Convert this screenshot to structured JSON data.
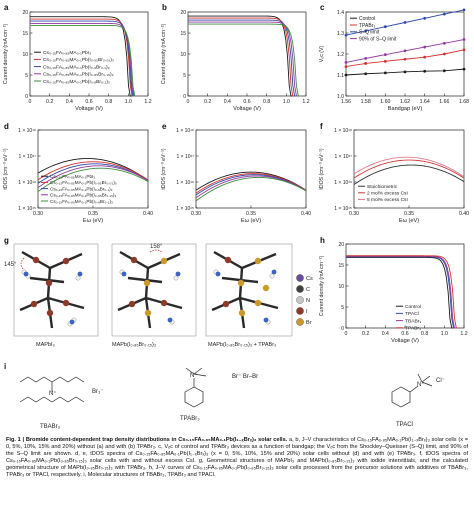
{
  "labels": {
    "a": "a",
    "b": "b",
    "c": "c",
    "d": "d",
    "e": "e",
    "f": "f",
    "g": "g",
    "h": "h",
    "i": "i"
  },
  "colors": {
    "black": "#1a1a1a",
    "red": "#d2322d",
    "blue": "#2f49a8",
    "purple": "#8e3aa0",
    "green": "#3c8d3c",
    "tdos_black": "#333333",
    "tdos_red": "#cc3b3b",
    "tdos_pink": "#e07a8c",
    "atom_Cs": "#6a4c9c",
    "atom_C": "#404040",
    "atom_N": "#c8c8c8",
    "atom_H": "#f2f2f2",
    "atom_I": "#8c3a2a",
    "atom_Br": "#c89a2a"
  },
  "panel_a": {
    "ylabel": "Current density (mA cm⁻²)",
    "xlabel": "Voltage (V)",
    "yticks": [
      "0",
      "5",
      "10",
      "15",
      "20"
    ],
    "xticks": [
      "0",
      "0.2",
      "0.4",
      "0.6",
      "0.8",
      "1.0",
      "1.2"
    ],
    "legend": [
      {
        "label": "Cs₀.₁₅FA₀.₈₅MA₀.₁PbI₃",
        "color": "#1a1a1a"
      },
      {
        "label": "Cs₀.₁₅FA₀.₈₅MA₀.₁Pb(I₀.₉₅Br₀.₀₅)₃",
        "color": "#d2322d"
      },
      {
        "label": "Cs₀.₁₅FA₀.₈₅MA₀.₁Pb(I₀.₉Br₀.₁)₃",
        "color": "#2f49a8"
      },
      {
        "label": "Cs₀.₁₅FA₀.₈₅MA₀.₁Pb(I₀.₈₅Br₀.₁₅)₃",
        "color": "#8e3aa0"
      },
      {
        "label": "Cs₀.₁₅FA₀.₈₅MA₀.₁Pb(I₀.₈Br₀.₂)₃",
        "color": "#3c8d3c"
      }
    ]
  },
  "panel_b": {
    "ylabel": "Current density (mA cm⁻²)",
    "xlabel": "Voltage (V)",
    "yticks": [
      "0",
      "5",
      "10",
      "15",
      "20"
    ],
    "xticks": [
      "0",
      "0.2",
      "0.4",
      "0.6",
      "0.8",
      "1.0",
      "1.2"
    ]
  },
  "panel_c": {
    "ylabel": "Vₒc (V)",
    "xlabel": "Bandgap (eV)",
    "yticks": [
      "1.0",
      "1.1",
      "1.2",
      "1.3",
      "1.4"
    ],
    "xticks": [
      "1.56",
      "1.58",
      "1.60",
      "1.62",
      "1.64",
      "1.66",
      "1.68"
    ],
    "legend": [
      {
        "label": "Control",
        "color": "#1a1a1a"
      },
      {
        "label": "TPABr₃",
        "color": "#d2322d"
      },
      {
        "label": "S–Q limit",
        "color": "#2f49a8"
      },
      {
        "label": "90% of S–Q limit",
        "color": "#8e3aa0"
      }
    ]
  },
  "panel_d": {
    "ylabel": "tDOS (cm⁻³ eV⁻¹)",
    "xlabel": "Eω (eV)",
    "yticks": [
      "1 × 10¹⁵",
      "1 × 10¹⁶",
      "1 × 10¹⁷",
      "1 × 10¹⁸"
    ],
    "xticks": [
      "0.30",
      "0.35",
      "0.40"
    ],
    "legend": [
      "Cs₀.₁₅FA₀.₈₅MA₀.₁PbI₃",
      "Cs₀.₁₅FA₀.₈₅MA₀.₁Pb(I₀.₉₅Br₀.₀₅)₃",
      "Cs₀.₁₅FA₀.₈₅MA₀.₁Pb(I₀.₉Br₀.₁)₃",
      "Cs₀.₁₅FA₀.₈₅MA₀.₁Pb(I₀.₈₅Br₀.₁₅)₃",
      "Cs₀.₁₅FA₀.₈₅MA₀.₁Pb(I₀.₈Br₀.₂)₃"
    ]
  },
  "panel_e": {
    "ylabel": "tDOS (cm⁻³ eV⁻¹)",
    "xlabel": "Eω (eV)",
    "yticks": [
      "1 × 10¹⁵",
      "1 × 10¹⁶",
      "1 × 10¹⁷",
      "1 × 10¹⁸"
    ],
    "xticks": [
      "0.30",
      "0.35",
      "0.40"
    ]
  },
  "panel_f": {
    "ylabel": "tDOS (cm⁻³ eV⁻¹)",
    "xlabel": "Eω (eV)",
    "yticks": [
      "1 × 10¹⁵",
      "1 × 10¹⁶",
      "1 × 10¹⁷",
      "1 × 10¹⁸"
    ],
    "xticks": [
      "0.30",
      "0.35",
      "0.40"
    ],
    "legend": [
      {
        "label": "Stoichiometric",
        "color": "#333333"
      },
      {
        "label": "2 mol% excess CsI",
        "color": "#cc3b3b"
      },
      {
        "label": "5 mol% excess CsI",
        "color": "#e07a8c"
      }
    ]
  },
  "panel_g": {
    "angle1": "145°",
    "angle2": "158°",
    "caption1": "MAPbI₃",
    "caption2": "MAPb(I₀.₈₅Br₀.₁₅)₃",
    "caption3": "MAPb(I₀.₈₅Br₀.₁₅)₃ + TPABr₃",
    "atom_legend": [
      "Cs",
      "C",
      "N",
      "I",
      "Br"
    ]
  },
  "panel_h": {
    "ylabel": "Current density (mA cm⁻²)",
    "xlabel": "Voltage (V)",
    "yticks": [
      "0",
      "5",
      "10",
      "15",
      "20"
    ],
    "xticks": [
      "0",
      "0.2",
      "0.4",
      "0.6",
      "0.8",
      "1.0",
      "1.2"
    ],
    "legend": [
      {
        "label": "Control",
        "color": "#1a1a1a"
      },
      {
        "label": "TPACl",
        "color": "#2f49a8"
      },
      {
        "label": "TBABr₃",
        "color": "#8e3aa0"
      },
      {
        "label": "TPABr₃",
        "color": "#d2322d"
      }
    ]
  },
  "panel_i": {
    "tbabr_label": "TBABr₃",
    "tbabr_anion": "Br₃⁻",
    "tpabr_label": "TPABr₃",
    "tpabr_anion": "Br⁻ Br–Br",
    "tpacl_label": "TPACl",
    "tpacl_anion": "Cl⁻"
  },
  "caption": {
    "lead": "Fig. 1 | Bromide content-dependent trap density distributions in Cs₀.₁₅FA₀.₈₅MA₀.₁Pb(I₁₋ₓBrₓ)₃ solar cells.",
    "body": " a, b, J–V characteristics of Cs₀.₁₅FA₀.₈₅MA₀.₁Pb(I₁₋ₓBrₓ)₃ solar cells (x = 0, 5%, 10%, 15% and 20%) without (a) and with (b) TPABr₃. c, Vₒc of control and TPABr₃ devices as a function of bandgap; the Vₒc from the Shockley–Queisser (S–Q) limit, and 90% of the S–Q limit are shown. d, e, tDOS spectra of Cs₀.₁₅FA₀.₈₅MA₀.₁Pb(I₁₋ₓBrₓ)₃ (x = 0, 5%, 10%, 15% and 20%) solar cells without (d) and with (e) TPABr₃. f, tDOS spectra of Cs₀.₁₅FA₀.₈₅MA₀.₁Pb(I₀.₈₅Br₀.₁₅)₃ solar cells with and without excess CsI. g, Geometrical structures of MAPbI₃ and MAPb(I₀.₈₅Br₀.₁₅)₃ with iodide interstitials, and the calculated geometrical structure of MAPb(I₀.₈₅Br₀.₁₅)₃ with TPABr₃. h, J–V curves of Cs₀.₁₅FA₀.₈₅MA₀.₁Pb(I₀.₈₅Br₀.₁₅)₃ solar cells processed from the precursor solutions with additives of TBABr₃, TPABr₃ or TPACl, respectively. i, Molecular structures of TBABr₃, TPABr₃ and TPACl."
  },
  "chart_data": [
    {
      "type": "line",
      "panel": "a",
      "xlabel": "Voltage (V)",
      "ylabel": "Current density (mA cm⁻²)",
      "xlim": [
        0,
        1.3
      ],
      "ylim": [
        0,
        25
      ],
      "series": [
        {
          "name": "Cs₀.₁₅FA₀.₈₅MA₀.₁PbI₃",
          "jsc": 23.6,
          "voc": 1.09
        },
        {
          "name": "Cs₀.₁₅FA₀.₈₅MA₀.₁Pb(I₀.₉₅Br₀.₀₅)₃",
          "jsc": 22.9,
          "voc": 1.11
        },
        {
          "name": "Cs₀.₁₅FA₀.₈₅MA₀.₁Pb(I₀.₉Br₀.₁)₃",
          "jsc": 22.3,
          "voc": 1.12
        },
        {
          "name": "Cs₀.₁₅FA₀.₈₅MA₀.₁Pb(I₀.₈₅Br₀.₁₅)₃",
          "jsc": 21.6,
          "voc": 1.13
        },
        {
          "name": "Cs₀.₁₅FA₀.₈₅MA₀.₁Pb(I₀.₈Br₀.₂)₃",
          "jsc": 21.0,
          "voc": 1.14
        }
      ]
    },
    {
      "type": "line",
      "panel": "b",
      "xlabel": "Voltage (V)",
      "ylabel": "Current density (mA cm⁻²)",
      "xlim": [
        0,
        1.3
      ],
      "ylim": [
        0,
        25
      ],
      "series": [
        {
          "jsc": 23.8,
          "voc": 1.12
        },
        {
          "jsc": 23.2,
          "voc": 1.14
        },
        {
          "jsc": 22.6,
          "voc": 1.16
        },
        {
          "jsc": 22.0,
          "voc": 1.18
        },
        {
          "jsc": 21.4,
          "voc": 1.2
        }
      ]
    },
    {
      "type": "line",
      "panel": "c",
      "xlabel": "Bandgap (eV)",
      "ylabel": "Vₒc (V)",
      "xlim": [
        1.56,
        1.69
      ],
      "ylim": [
        1.0,
        1.45
      ],
      "x": [
        1.56,
        1.58,
        1.6,
        1.62,
        1.64,
        1.66,
        1.68
      ],
      "series": [
        {
          "name": "Control",
          "values": [
            1.1,
            1.106,
            1.11,
            1.115,
            1.118,
            1.12,
            1.128
          ]
        },
        {
          "name": "TPABr₃",
          "values": [
            1.14,
            1.155,
            1.165,
            1.175,
            1.185,
            1.2,
            1.22
          ]
        },
        {
          "name": "S–Q limit",
          "values": [
            1.29,
            1.31,
            1.33,
            1.35,
            1.37,
            1.39,
            1.41
          ]
        },
        {
          "name": "90% of S–Q limit",
          "values": [
            1.16,
            1.179,
            1.197,
            1.215,
            1.233,
            1.251,
            1.269
          ]
        }
      ]
    },
    {
      "type": "line",
      "panel": "d",
      "xlabel": "Eω (eV)",
      "ylabel": "tDOS (cm⁻³ eV⁻¹)",
      "xlim": [
        0.3,
        0.4
      ],
      "ylim": [
        1000000000000000.0,
        1e+18
      ],
      "yscale": "log",
      "series": [
        {
          "peak": 8e+16,
          "center": 0.345
        },
        {
          "peak": 6e+16,
          "center": 0.35
        },
        {
          "peak": 5e+16,
          "center": 0.352
        },
        {
          "peak": 4.2e+16,
          "center": 0.355
        },
        {
          "peak": 3.4e+16,
          "center": 0.357
        }
      ]
    },
    {
      "type": "line",
      "panel": "e",
      "xlabel": "Eω (eV)",
      "ylabel": "tDOS (cm⁻³ eV⁻¹)",
      "xlim": [
        0.3,
        0.4
      ],
      "ylim": [
        1000000000000000.0,
        1e+18
      ],
      "yscale": "log",
      "series": [
        {
          "peak": 2.4e+16,
          "center": 0.35
        },
        {
          "peak": 2.1e+16,
          "center": 0.352
        },
        {
          "peak": 1.9e+16,
          "center": 0.353
        },
        {
          "peak": 1.7e+16,
          "center": 0.355
        },
        {
          "peak": 1.5e+16,
          "center": 0.357
        }
      ]
    },
    {
      "type": "line",
      "panel": "f",
      "xlabel": "Eω (eV)",
      "ylabel": "tDOS (cm⁻³ eV⁻¹)",
      "xlim": [
        0.3,
        0.4
      ],
      "ylim": [
        1000000000000000.0,
        1e+18
      ],
      "yscale": "log",
      "series": [
        {
          "name": "Stoichiometric",
          "peak": 4.5e+16,
          "center": 0.352
        },
        {
          "name": "2 mol% excess CsI",
          "peak": 7e+16,
          "center": 0.35
        },
        {
          "name": "5 mol% excess CsI",
          "peak": 9e+16,
          "center": 0.348
        }
      ]
    },
    {
      "type": "line",
      "panel": "h",
      "xlabel": "Voltage (V)",
      "ylabel": "Current density (mA cm⁻²)",
      "xlim": [
        0,
        1.3
      ],
      "ylim": [
        0,
        25
      ],
      "series": [
        {
          "name": "Control",
          "jsc": 21.0,
          "voc": 1.15
        },
        {
          "name": "TPACl",
          "jsc": 21.2,
          "voc": 1.17
        },
        {
          "name": "TBABr₃",
          "jsc": 21.3,
          "voc": 1.18
        },
        {
          "name": "TPABr₃",
          "jsc": 21.5,
          "voc": 1.2
        }
      ]
    }
  ]
}
